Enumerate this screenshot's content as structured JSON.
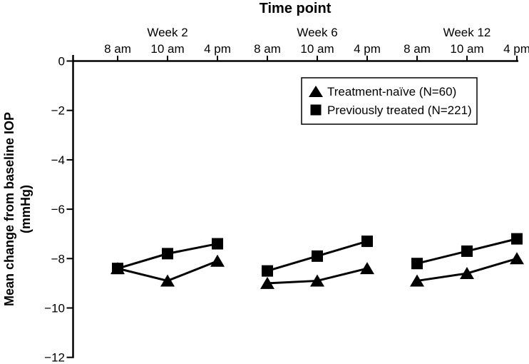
{
  "figure": {
    "background_color": "#ffffff",
    "axis_color": "#000000"
  },
  "chart_data": {
    "type": "line",
    "title": "Time point",
    "title_position": "top",
    "ylabel": "Mean change from baseline IOP (mmHg)",
    "ylabel_lines": [
      "Mean change from baseline IOP",
      "(mmHg)"
    ],
    "ylim": [
      -12,
      0
    ],
    "ytick_values": [
      0,
      -2,
      -4,
      -6,
      -8,
      -10,
      -12
    ],
    "ytick_labels": [
      "0",
      "−2",
      "−4",
      "−6",
      "−8",
      "−10",
      "−12"
    ],
    "x_axis_side": "top",
    "grid": false,
    "groups": [
      {
        "label": "Week 2",
        "times": [
          "8 am",
          "10 am",
          "4 pm"
        ]
      },
      {
        "label": "Week 6",
        "times": [
          "8 am",
          "10 am",
          "4 pm"
        ]
      },
      {
        "label": "Week 12",
        "times": [
          "8 am",
          "10 am",
          "4 pm"
        ]
      }
    ],
    "series": [
      {
        "name": "Treatment-naïve (N=60)",
        "marker": "triangle",
        "color": "#000000",
        "values": [
          [
            -8.4,
            -8.9,
            -8.1
          ],
          [
            -9.0,
            -8.9,
            -8.4
          ],
          [
            -8.9,
            -8.6,
            -8.0
          ]
        ]
      },
      {
        "name": "Previously treated (N=221)",
        "marker": "square",
        "color": "#000000",
        "values": [
          [
            -8.4,
            -7.8,
            -7.4
          ],
          [
            -8.5,
            -7.9,
            -7.3
          ],
          [
            -8.2,
            -7.7,
            -7.2
          ]
        ]
      }
    ],
    "legend_position": "top-right"
  }
}
